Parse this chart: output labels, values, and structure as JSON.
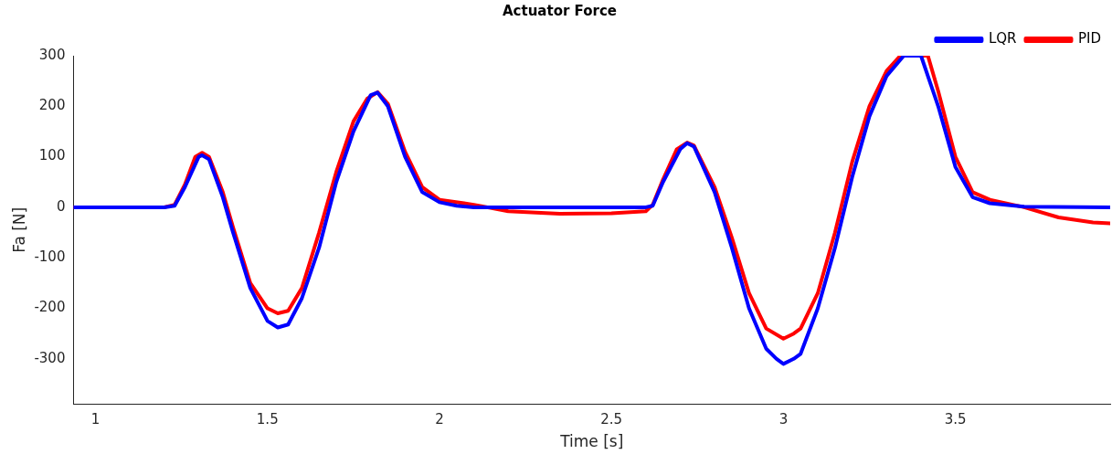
{
  "chart_data": {
    "type": "line",
    "title": "Actuator Force",
    "xlabel": "Time [s]",
    "ylabel": "Fa [N]",
    "xlim": [
      0.936,
      3.95
    ],
    "ylim": [
      -390,
      300
    ],
    "xticks": [
      1,
      1.5,
      2,
      2.5,
      3,
      3.5
    ],
    "yticks": [
      -300,
      -200,
      -100,
      0,
      100,
      200,
      300
    ],
    "grid": false,
    "legend": "top right",
    "marker": "none",
    "line_style": "solid",
    "series": [
      {
        "name": "LQR",
        "color": "#0000ff",
        "x": [
          0.936,
          1.2,
          1.23,
          1.26,
          1.3,
          1.31,
          1.33,
          1.37,
          1.4,
          1.45,
          1.5,
          1.53,
          1.56,
          1.6,
          1.65,
          1.7,
          1.75,
          1.8,
          1.82,
          1.85,
          1.9,
          1.95,
          2.0,
          2.05,
          2.1,
          2.6,
          2.62,
          2.65,
          2.7,
          2.72,
          2.74,
          2.8,
          2.85,
          2.9,
          2.95,
          2.98,
          3.0,
          3.03,
          3.05,
          3.1,
          3.15,
          3.2,
          3.25,
          3.3,
          3.35,
          3.4,
          3.45,
          3.5,
          3.55,
          3.6,
          3.7,
          3.95
        ],
        "values": [
          0,
          0,
          3,
          40,
          100,
          103,
          95,
          20,
          -50,
          -160,
          -225,
          -238,
          -232,
          -180,
          -80,
          50,
          150,
          222,
          227,
          200,
          100,
          30,
          10,
          3,
          0,
          0,
          3,
          50,
          115,
          127,
          120,
          30,
          -80,
          -200,
          -280,
          -300,
          -310,
          -300,
          -290,
          -200,
          -80,
          60,
          180,
          260,
          300,
          300,
          200,
          80,
          20,
          8,
          1,
          0
        ]
      },
      {
        "name": "PID",
        "color": "#ff0000",
        "x": [
          0.936,
          1.2,
          1.23,
          1.26,
          1.29,
          1.31,
          1.33,
          1.37,
          1.4,
          1.45,
          1.5,
          1.53,
          1.56,
          1.6,
          1.65,
          1.7,
          1.75,
          1.79,
          1.82,
          1.85,
          1.9,
          1.95,
          2.0,
          2.1,
          2.2,
          2.35,
          2.5,
          2.6,
          2.62,
          2.65,
          2.69,
          2.72,
          2.74,
          2.8,
          2.85,
          2.9,
          2.95,
          3.0,
          3.03,
          3.05,
          3.1,
          3.15,
          3.2,
          3.25,
          3.3,
          3.34,
          3.42,
          3.45,
          3.5,
          3.55,
          3.6,
          3.7,
          3.8,
          3.9,
          3.95
        ],
        "values": [
          0,
          0,
          5,
          45,
          100,
          108,
          100,
          30,
          -40,
          -150,
          -200,
          -210,
          -205,
          -160,
          -50,
          70,
          170,
          215,
          228,
          205,
          110,
          40,
          15,
          5,
          -8,
          -13,
          -12,
          -8,
          5,
          55,
          115,
          128,
          122,
          40,
          -60,
          -170,
          -240,
          -260,
          -250,
          -240,
          -170,
          -50,
          90,
          200,
          270,
          300,
          300,
          230,
          100,
          30,
          15,
          0,
          -20,
          -30,
          -32
        ]
      }
    ]
  }
}
